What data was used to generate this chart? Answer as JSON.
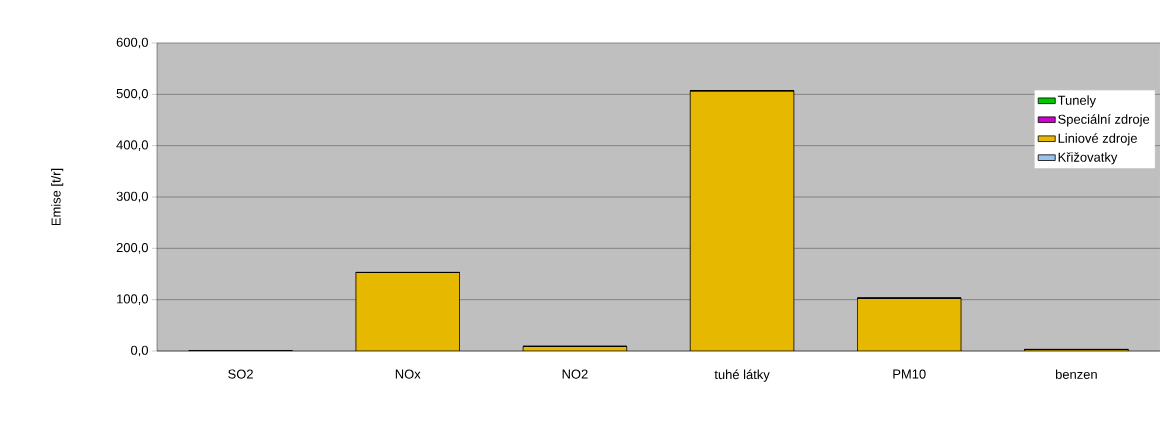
{
  "chart_data": {
    "type": "bar",
    "stacked": true,
    "ylabel": "Emise [t/r]",
    "categories": [
      "SO2",
      "NOx",
      "NO2",
      "tuhé látky",
      "PM10",
      "benzen"
    ],
    "series": [
      {
        "name": "Křižovatky",
        "color": "#99c2f0",
        "values": [
          0,
          0,
          0,
          0,
          0,
          0
        ]
      },
      {
        "name": "Liniové zdroje",
        "color": "#e6b800",
        "values": [
          null,
          153,
          9,
          507,
          103,
          3
        ]
      },
      {
        "name": "Speciální zdroje",
        "color": "#d000d0",
        "values": [
          0,
          0,
          0,
          0,
          0,
          0
        ]
      },
      {
        "name": "Tunely",
        "color": "#00c800",
        "values": [
          0,
          0,
          0,
          0,
          0,
          0
        ]
      }
    ],
    "ylim": [
      0,
      600
    ],
    "yticks": [
      {
        "value": 0,
        "label": "0,0"
      },
      {
        "value": 100,
        "label": "100,0"
      },
      {
        "value": 200,
        "label": "200,0"
      },
      {
        "value": 300,
        "label": "300,0"
      },
      {
        "value": 400,
        "label": "400,0"
      },
      {
        "value": 500,
        "label": "500,0"
      },
      {
        "value": 600,
        "label": "600,0"
      }
    ],
    "grid": "y",
    "legend": "right"
  }
}
